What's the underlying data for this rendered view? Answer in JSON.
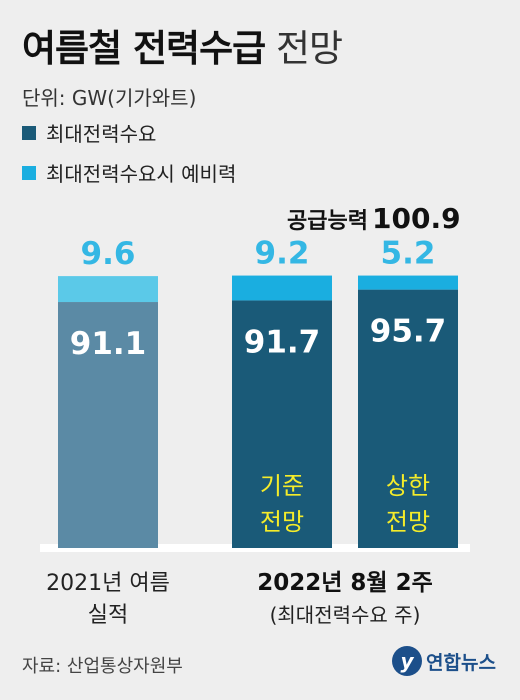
{
  "header": {
    "title_bold": "여름철 전력수급",
    "title_light": "전망",
    "unit": "단위: GW(기가와트)"
  },
  "chart_data": {
    "type": "bar",
    "stacked": true,
    "categories": [
      "2021년 여름 실적",
      "2022년 8월 2주 기준 전망",
      "2022년 8월 2주 상한 전망"
    ],
    "series": [
      {
        "name": "최대전력수요",
        "values": [
          91.1,
          91.7,
          95.7
        ]
      },
      {
        "name": "최대전력수요시 예비력",
        "values": [
          9.6,
          9.2,
          5.2
        ]
      }
    ],
    "colors": {
      "past_demand": "#5b8aa5",
      "past_reserve": "#5bc9e8",
      "demand": "#1a5a78",
      "reserve": "#1aaee0",
      "scenario_label": "#f5ec2a",
      "baseline": "#ffffff"
    },
    "supply_label": "공급능력",
    "supply_value": "100.9",
    "bar_notes": [
      "",
      "기준\n전망",
      "상한\n전망"
    ],
    "group_labels": {
      "left": [
        "2021년 여름",
        "실적"
      ],
      "right": [
        "2022년 8월 2주",
        "(최대전력수요 주)"
      ]
    },
    "legend": "top-left",
    "ylim": [
      0,
      100.9
    ],
    "grid": false
  },
  "footer": {
    "source": "자료: 산업통상자원부",
    "logo_text": "연합뉴스",
    "logo_icon": "yonhap-logo-icon"
  }
}
